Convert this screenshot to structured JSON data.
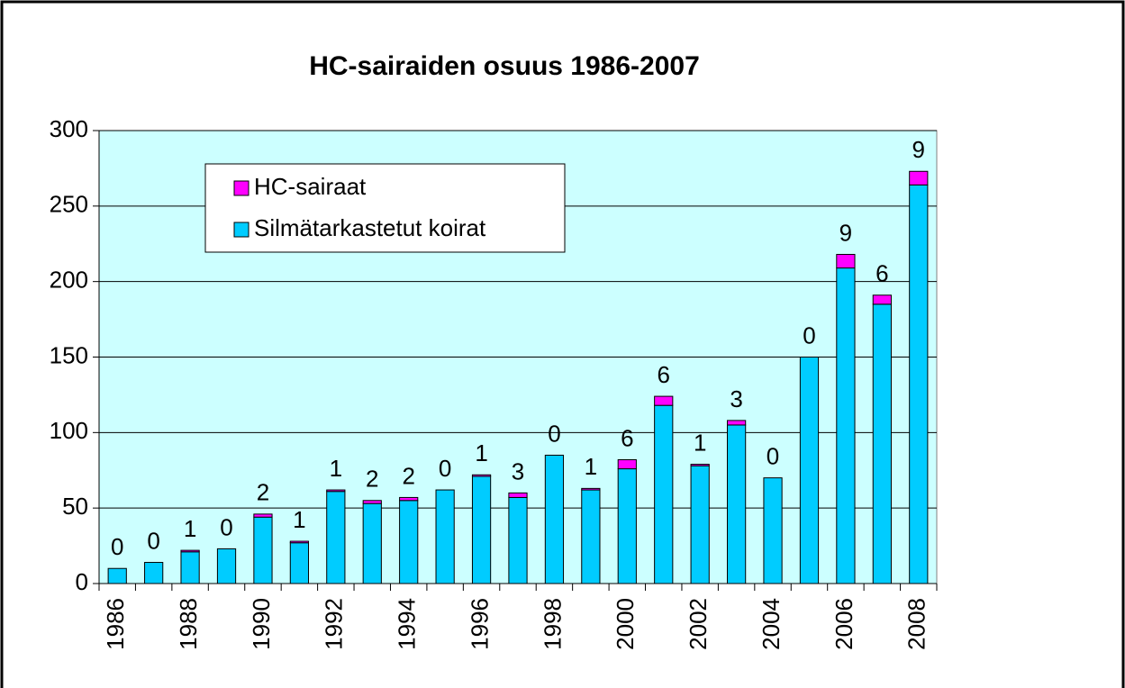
{
  "chart_data": {
    "type": "stacked_bar",
    "title": "HC-sairaiden osuus 1986-2007",
    "categories": [
      "1986",
      null,
      "1988",
      null,
      "1990",
      null,
      "1992",
      null,
      "1994",
      null,
      "1996",
      null,
      "1998",
      null,
      "2000",
      null,
      "2002",
      null,
      "2004",
      null,
      "2006",
      null,
      "2008"
    ],
    "series": [
      {
        "name": "Silmätarkastetut koirat",
        "color": "#00ccff",
        "values": [
          10,
          14,
          21,
          23,
          44,
          27,
          61,
          53,
          55,
          62,
          71,
          57,
          85,
          62,
          76,
          118,
          78,
          105,
          70,
          150,
          209,
          185,
          264
        ]
      },
      {
        "name": "HC-sairaat",
        "color": "#ff00ff",
        "values": [
          0,
          0,
          1,
          0,
          2,
          1,
          1,
          2,
          2,
          0,
          1,
          3,
          0,
          1,
          6,
          6,
          1,
          3,
          0,
          0,
          9,
          6,
          9
        ]
      }
    ],
    "ylim": [
      0,
      300
    ],
    "yticks": [
      0,
      50,
      100,
      150,
      200,
      250,
      300
    ],
    "grid": true,
    "legend": "upper left"
  }
}
